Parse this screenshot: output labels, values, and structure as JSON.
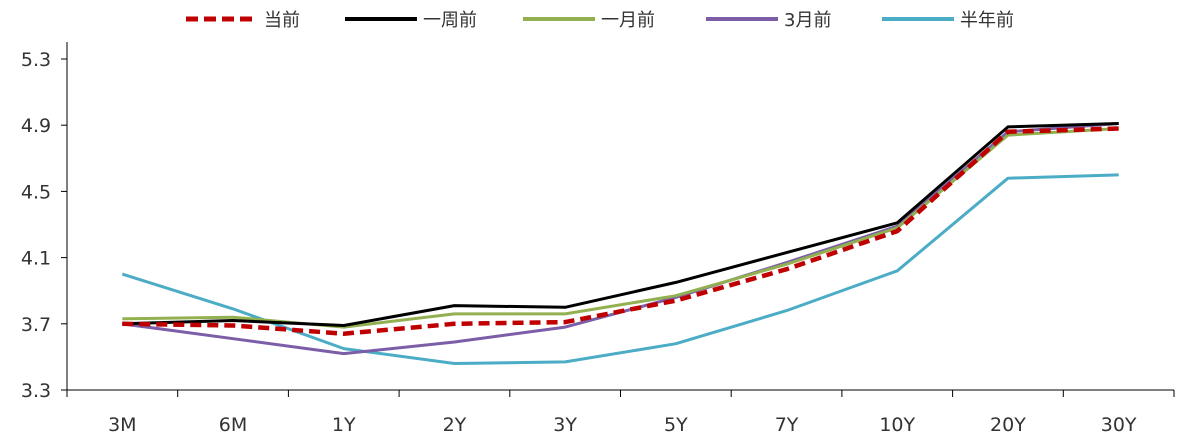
{
  "chart_data": {
    "type": "line",
    "categories": [
      "3M",
      "6M",
      "1Y",
      "2Y",
      "3Y",
      "5Y",
      "7Y",
      "10Y",
      "20Y",
      "30Y"
    ],
    "ylim": [
      3.3,
      5.3
    ],
    "yticks": [
      "3.3",
      "3.7",
      "4.1",
      "4.5",
      "4.9",
      "5.3"
    ],
    "legend_position": "top",
    "grid": false,
    "series": [
      {
        "name": "当前",
        "color": "#c00000",
        "dash": true,
        "values": [
          3.7,
          3.69,
          3.64,
          3.7,
          3.71,
          3.84,
          4.03,
          4.26,
          4.86,
          4.88
        ]
      },
      {
        "name": "一周前",
        "color": "#000000",
        "dash": false,
        "values": [
          3.7,
          3.72,
          3.69,
          3.81,
          3.8,
          3.95,
          4.13,
          4.31,
          4.89,
          4.91
        ]
      },
      {
        "name": "一月前",
        "color": "#92b050",
        "dash": false,
        "values": [
          3.73,
          3.74,
          3.68,
          3.76,
          3.76,
          3.87,
          4.06,
          4.28,
          4.84,
          4.88
        ]
      },
      {
        "name": "3月前",
        "color": "#7b5ea7",
        "dash": false,
        "values": [
          3.7,
          3.61,
          3.52,
          3.59,
          3.68,
          3.86,
          4.07,
          4.29,
          4.86,
          4.91
        ]
      },
      {
        "name": "半年前",
        "color": "#4bacc6",
        "dash": false,
        "values": [
          4.0,
          3.79,
          3.55,
          3.46,
          3.47,
          3.58,
          3.78,
          4.02,
          4.58,
          4.6
        ]
      }
    ]
  }
}
